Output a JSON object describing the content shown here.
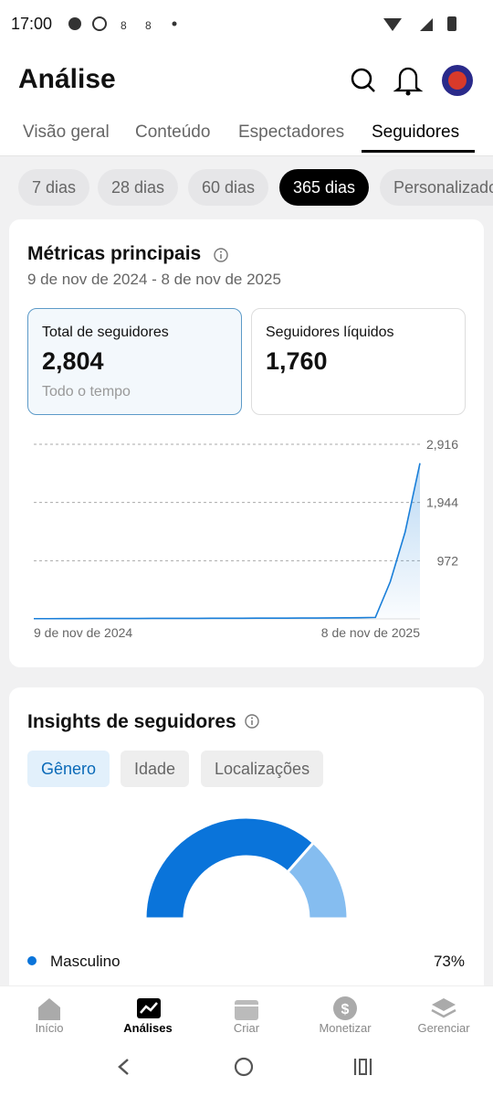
{
  "status_bar": {
    "time": "17:00"
  },
  "header": {
    "title": "Análise"
  },
  "tabs": [
    "Visão geral",
    "Conteúdo",
    "Espectadores",
    "Seguidores"
  ],
  "periods": [
    "7 dias",
    "28 dias",
    "60 dias",
    "365 dias",
    "Personalizado"
  ],
  "metrics": {
    "title": "Métricas principais",
    "date_range": "9 de nov de 2024 - 8 de nov de 2025",
    "cards": [
      {
        "label": "Total de seguidores",
        "value": "2,804",
        "note": "Todo o tempo"
      },
      {
        "label": "Seguidores líquidos",
        "value": "1,760"
      }
    ]
  },
  "insights": {
    "title": "Insights de seguidores",
    "filters": [
      "Gênero",
      "Idade",
      "Localizações"
    ]
  },
  "chart_data": [
    {
      "type": "line",
      "categories": [
        "9 de nov de 2024",
        null,
        null,
        null,
        null,
        null,
        null,
        null,
        null,
        null,
        null,
        null,
        null,
        null,
        null,
        null,
        null,
        null,
        null,
        null,
        null,
        null,
        null,
        null,
        null,
        null,
        "8 de nov de 2025"
      ],
      "series": [
        {
          "color": "#1a7fd9",
          "values": [
            4,
            4,
            5,
            5,
            6,
            6,
            7,
            7,
            8,
            8,
            9,
            9,
            10,
            10,
            11,
            12,
            12,
            13,
            14,
            15,
            16,
            18,
            20,
            25,
            620,
            1450,
            2600
          ]
        }
      ],
      "ylim": [
        0,
        2916
      ],
      "yticks": [
        {
          "value": 972,
          "label": "972"
        },
        {
          "value": 1944,
          "label": "1,944"
        },
        {
          "value": 2916,
          "label": "2,916"
        }
      ],
      "grid": true
    },
    {
      "type": "pie",
      "categories": [
        "Masculino",
        null
      ],
      "values": [
        73,
        27
      ],
      "value_labels": [
        "73%",
        null
      ],
      "colors": [
        "#0a74da",
        "#85bdf0"
      ]
    }
  ],
  "nav": [
    "Início",
    "Análises",
    "Criar",
    "Monetizar",
    "Gerenciar"
  ]
}
